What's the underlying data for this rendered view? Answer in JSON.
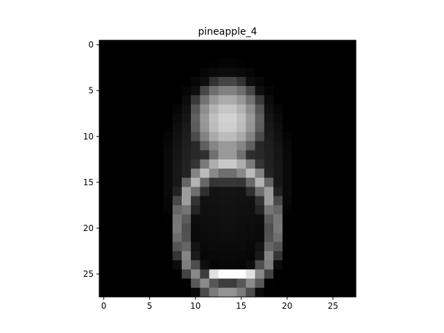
{
  "chart_data": {
    "type": "heatmap",
    "title": "pineapple_4",
    "xlabel": "",
    "ylabel": "",
    "colormap": "gray",
    "rows": 28,
    "cols": 28,
    "xlim": [
      -0.5,
      27.5
    ],
    "ylim": [
      27.5,
      -0.5
    ],
    "x_ticks": [
      0,
      5,
      10,
      15,
      20,
      25
    ],
    "y_ticks": [
      0,
      5,
      10,
      15,
      20,
      25
    ],
    "x_tick_labels": [
      "0",
      "5",
      "10",
      "15",
      "20",
      "25"
    ],
    "y_tick_labels": [
      "0",
      "5",
      "10",
      "15",
      "20",
      "25"
    ],
    "value_range": [
      0,
      255
    ]
  },
  "colors": {
    "background": "#ffffff",
    "axis": "#000000"
  }
}
